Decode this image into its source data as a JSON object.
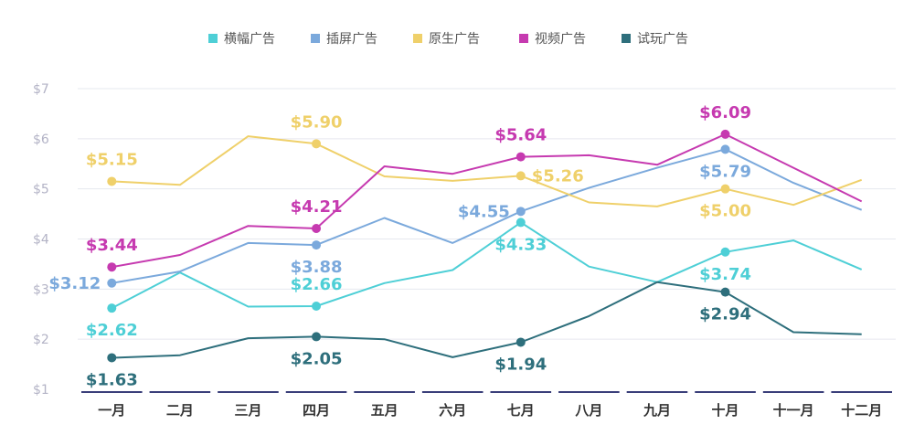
{
  "chart_data": {
    "type": "line",
    "title": "",
    "xlabel": "",
    "ylabel": "",
    "ylim": [
      1,
      7
    ],
    "y_ticks": [
      "$7",
      "$6",
      "$5",
      "$4",
      "$3",
      "$2",
      "$1"
    ],
    "categories": [
      "一月",
      "二月",
      "三月",
      "四月",
      "五月",
      "六月",
      "七月",
      "八月",
      "九月",
      "十月",
      "十一月",
      "十二月"
    ],
    "legend_position": "top",
    "grid": true,
    "series": [
      {
        "name": "横幅广告",
        "color": "#4ECFD6",
        "values": [
          2.62,
          3.33,
          2.65,
          2.66,
          3.12,
          3.38,
          4.33,
          3.45,
          3.14,
          3.74,
          3.97,
          3.39
        ],
        "labels": [
          {
            "index": 0,
            "text": "$2.62",
            "pos": "below"
          },
          {
            "index": 3,
            "text": "$2.66",
            "pos": "above"
          },
          {
            "index": 6,
            "text": "$4.33",
            "pos": "below"
          },
          {
            "index": 9,
            "text": "$3.74",
            "pos": "below"
          }
        ]
      },
      {
        "name": "插屏广告",
        "color": "#7BA9DC",
        "values": [
          3.12,
          3.35,
          3.92,
          3.88,
          4.42,
          3.92,
          4.55,
          5.02,
          5.42,
          5.79,
          5.12,
          4.58
        ],
        "labels": [
          {
            "index": 0,
            "text": "$3.12",
            "pos": "left"
          },
          {
            "index": 3,
            "text": "$3.88",
            "pos": "below"
          },
          {
            "index": 6,
            "text": "$4.55",
            "pos": "left"
          },
          {
            "index": 9,
            "text": "$5.79",
            "pos": "below"
          }
        ]
      },
      {
        "name": "原生广告",
        "color": "#EFD06A",
        "values": [
          5.15,
          5.08,
          6.05,
          5.9,
          5.25,
          5.16,
          5.26,
          4.73,
          4.65,
          5.0,
          4.68,
          5.18
        ],
        "labels": [
          {
            "index": 0,
            "text": "$5.15",
            "pos": "above"
          },
          {
            "index": 3,
            "text": "$5.90",
            "pos": "above"
          },
          {
            "index": 6,
            "text": "$5.26",
            "pos": "right"
          },
          {
            "index": 9,
            "text": "$5.00",
            "pos": "below"
          }
        ]
      },
      {
        "name": "视频广告",
        "color": "#C63AB0",
        "values": [
          3.44,
          3.68,
          4.26,
          4.21,
          5.45,
          5.3,
          5.64,
          5.67,
          5.48,
          6.09,
          5.42,
          4.75
        ],
        "labels": [
          {
            "index": 0,
            "text": "$3.44",
            "pos": "above"
          },
          {
            "index": 3,
            "text": "$4.21",
            "pos": "above"
          },
          {
            "index": 6,
            "text": "$5.64",
            "pos": "above"
          },
          {
            "index": 9,
            "text": "$6.09",
            "pos": "above"
          }
        ]
      },
      {
        "name": "试玩广告",
        "color": "#2E6F7C",
        "values": [
          1.63,
          1.68,
          2.02,
          2.05,
          2.0,
          1.64,
          1.94,
          2.46,
          3.14,
          2.94,
          2.14,
          2.1
        ],
        "labels": [
          {
            "index": 0,
            "text": "$1.63",
            "pos": "below"
          },
          {
            "index": 3,
            "text": "$2.05",
            "pos": "below"
          },
          {
            "index": 6,
            "text": "$1.94",
            "pos": "below"
          },
          {
            "index": 9,
            "text": "$2.94",
            "pos": "below"
          }
        ]
      }
    ]
  }
}
